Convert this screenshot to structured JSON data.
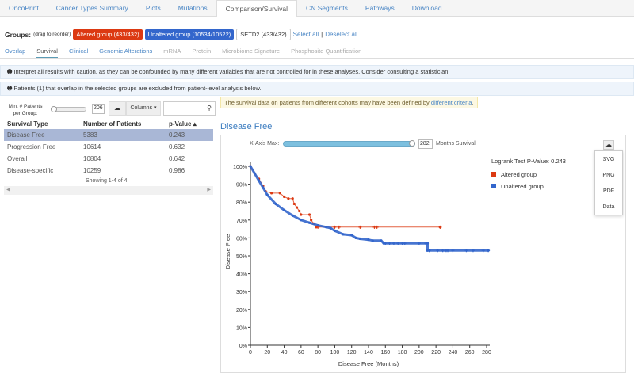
{
  "tabs": [
    "OncoPrint",
    "Cancer Types Summary",
    "Plots",
    "Mutations",
    "Comparison/Survival",
    "CN Segments",
    "Pathways",
    "Download"
  ],
  "active_tab": 4,
  "groups": {
    "label": "Groups:",
    "hint": "(drag to reorder)",
    "items": [
      {
        "label": "Altered group (433/432)",
        "color": "#dc3912"
      },
      {
        "label": "Unaltered group (10534/10522)",
        "color": "#3366cc"
      },
      {
        "label": "SETD2 (433/432)",
        "color": "#ffffff"
      }
    ],
    "select_all": "Select all",
    "sep": "|",
    "deselect_all": "Deselect all"
  },
  "subtabs": [
    {
      "label": "Overlap",
      "state": "link"
    },
    {
      "label": "Survival",
      "state": "active"
    },
    {
      "label": "Clinical",
      "state": "link"
    },
    {
      "label": "Genomic Alterations",
      "state": "link"
    },
    {
      "label": "mRNA",
      "state": "disabled"
    },
    {
      "label": "Protein",
      "state": "disabled"
    },
    {
      "label": "Microbiome Signature",
      "state": "disabled"
    },
    {
      "label": "Phosphosite Quantification",
      "state": "disabled"
    }
  ],
  "info1": "Interpret all results with caution, as they can be confounded by many different variables that are not controlled for in these analyses. Consider consulting a statistician.",
  "info2": "Patients (1) that overlap in the selected groups are excluded from patient-level analysis below.",
  "controls": {
    "min_label": "Min. # Patients per Group:",
    "min_value": "206",
    "columns": "Columns",
    "search_placeholder": ""
  },
  "table": {
    "headers": [
      "Survival Type",
      "Number of Patients",
      "p-Value"
    ],
    "rows": [
      [
        "Disease Free",
        "5383",
        "0.243"
      ],
      [
        "Progression Free",
        "10614",
        "0.632"
      ],
      [
        "Overall",
        "10804",
        "0.642"
      ],
      [
        "Disease-specific",
        "10259",
        "0.986"
      ]
    ],
    "footer": "Showing 1-4 of 4"
  },
  "warning": {
    "text": "The survival data on patients from different cohorts may have been defined by ",
    "link": "different criteria",
    "end": "."
  },
  "plot_title": "Disease Free",
  "xaxis_max": {
    "label": "X-Axis Max:",
    "value": "282",
    "unit": "Months Survival"
  },
  "download_menu": [
    "SVG",
    "PNG",
    "PDF",
    "Data"
  ],
  "chart_data": {
    "type": "line",
    "xlabel": "Disease Free (Months)",
    "ylabel": "Disease Free",
    "xlim": [
      0,
      282
    ],
    "ylim": [
      0,
      100
    ],
    "xticks": [
      0,
      20,
      40,
      60,
      80,
      100,
      120,
      140,
      160,
      180,
      200,
      220,
      240,
      260,
      280
    ],
    "yticks": [
      "0%",
      "10%",
      "20%",
      "30%",
      "40%",
      "50%",
      "60%",
      "70%",
      "80%",
      "90%",
      "100%"
    ],
    "logrank": "Logrank Test P-Value: 0.243",
    "series": [
      {
        "name": "Altered group",
        "color": "#dc3912",
        "points": [
          [
            0,
            100
          ],
          [
            5,
            96
          ],
          [
            10,
            93
          ],
          [
            15,
            89
          ],
          [
            18,
            86
          ],
          [
            25,
            85
          ],
          [
            35,
            85
          ],
          [
            40,
            83
          ],
          [
            45,
            82
          ],
          [
            50,
            82
          ],
          [
            52,
            79
          ],
          [
            55,
            77
          ],
          [
            58,
            75
          ],
          [
            60,
            73
          ],
          [
            70,
            73
          ],
          [
            72,
            70
          ],
          [
            75,
            68
          ],
          [
            78,
            66
          ],
          [
            225,
            66
          ]
        ],
        "censor": [
          80,
          100,
          105,
          130,
          147,
          150,
          225
        ]
      },
      {
        "name": "Unaltered group",
        "color": "#3366cc",
        "points": [
          [
            0,
            100
          ],
          [
            5,
            96
          ],
          [
            10,
            92
          ],
          [
            15,
            88
          ],
          [
            20,
            84
          ],
          [
            30,
            79
          ],
          [
            40,
            75.5
          ],
          [
            50,
            72.5
          ],
          [
            60,
            70
          ],
          [
            70,
            68.5
          ],
          [
            80,
            67
          ],
          [
            90,
            66
          ],
          [
            95,
            65.5
          ],
          [
            100,
            64
          ],
          [
            110,
            62
          ],
          [
            120,
            61.5
          ],
          [
            125,
            60
          ],
          [
            130,
            59.5
          ],
          [
            140,
            59
          ],
          [
            145,
            58.5
          ],
          [
            155,
            58.5
          ],
          [
            158,
            57
          ],
          [
            210,
            57
          ],
          [
            210,
            53
          ],
          [
            282,
            53
          ]
        ],
        "censor": [
          160,
          165,
          170,
          175,
          180,
          183,
          200,
          208,
          212,
          222,
          228,
          232,
          234,
          240,
          256,
          264,
          276,
          282
        ]
      }
    ]
  }
}
